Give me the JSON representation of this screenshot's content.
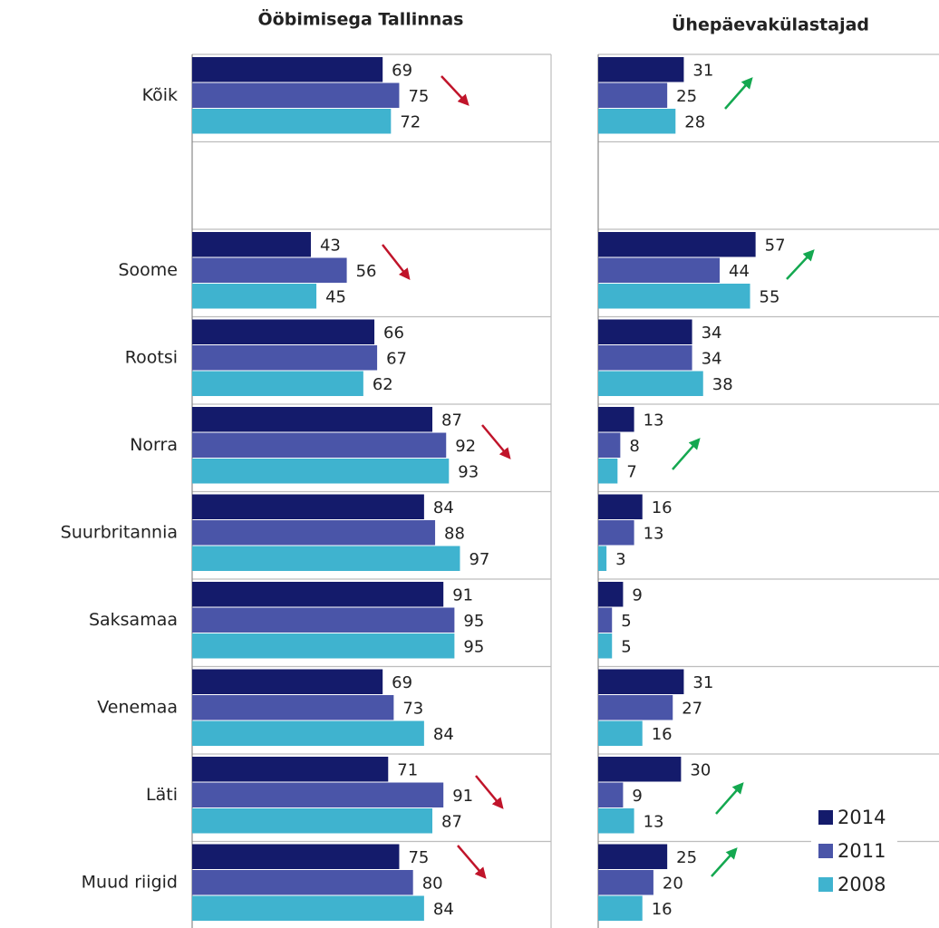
{
  "chart_data": [
    {
      "type": "bar",
      "orientation": "horizontal",
      "title": "Ööbimisega Tallinnas",
      "categories": [
        "Kõik",
        null,
        "Soome",
        "Rootsi",
        "Norra",
        "Suurbritannia",
        "Saksamaa",
        "Venemaa",
        "Läti",
        "Muud riigid"
      ],
      "xlim": [
        0,
        130
      ],
      "series": [
        {
          "color": "#141b6b",
          "values": [
            69,
            null,
            43,
            66,
            87,
            84,
            91,
            69,
            71,
            75
          ]
        },
        {
          "color": "#4a55a8",
          "values": [
            75,
            null,
            56,
            67,
            92,
            88,
            95,
            73,
            91,
            80
          ]
        },
        {
          "color": "#3fb3cf",
          "values": [
            72,
            null,
            45,
            62,
            93,
            97,
            95,
            84,
            87,
            84
          ]
        }
      ]
    },
    {
      "type": "bar",
      "orientation": "horizontal",
      "title": "Ühepäevakülastajad",
      "xlim": [
        0,
        130
      ],
      "legend": "lower right",
      "series": [
        {
          "name": "2014",
          "color": "#141b6b",
          "values": [
            31,
            null,
            57,
            34,
            13,
            16,
            9,
            31,
            30,
            25
          ]
        },
        {
          "name": "2011",
          "color": "#4a55a8",
          "values": [
            25,
            null,
            44,
            34,
            8,
            13,
            5,
            27,
            9,
            20
          ]
        },
        {
          "name": "2008",
          "color": "#3fb3cf",
          "values": [
            28,
            null,
            55,
            38,
            7,
            3,
            5,
            16,
            13,
            16
          ]
        }
      ]
    }
  ]
}
